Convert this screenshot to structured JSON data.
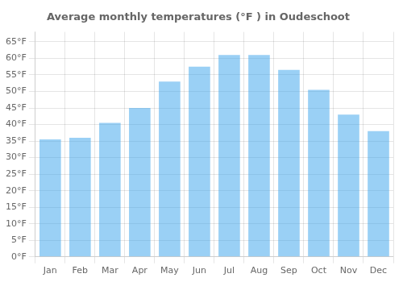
{
  "chart_data": {
    "type": "bar",
    "title": "Average monthly temperatures (°F ) in Oudeschoot",
    "categories": [
      "Jan",
      "Feb",
      "Mar",
      "Apr",
      "May",
      "Jun",
      "Jul",
      "Aug",
      "Sep",
      "Oct",
      "Nov",
      "Dec"
    ],
    "values": [
      35.5,
      36.0,
      40.5,
      45.0,
      53.0,
      57.5,
      61.0,
      61.0,
      56.5,
      50.5,
      43.0,
      38.0
    ],
    "ylim": [
      0,
      68
    ],
    "yticks": [
      {
        "value": 0,
        "label": "0°F"
      },
      {
        "value": 5,
        "label": "5°F"
      },
      {
        "value": 10,
        "label": "10°F"
      },
      {
        "value": 15,
        "label": "15°F"
      },
      {
        "value": 20,
        "label": "20°F"
      },
      {
        "value": 25,
        "label": "25°F"
      },
      {
        "value": 30,
        "label": "30°F"
      },
      {
        "value": 35,
        "label": "35°F"
      },
      {
        "value": 40,
        "label": "40°F"
      },
      {
        "value": 45,
        "label": "45°F"
      },
      {
        "value": 50,
        "label": "50°F"
      },
      {
        "value": 55,
        "label": "55°F"
      },
      {
        "value": 60,
        "label": "60°F"
      },
      {
        "value": 65,
        "label": "65°F"
      }
    ],
    "grid": true
  }
}
